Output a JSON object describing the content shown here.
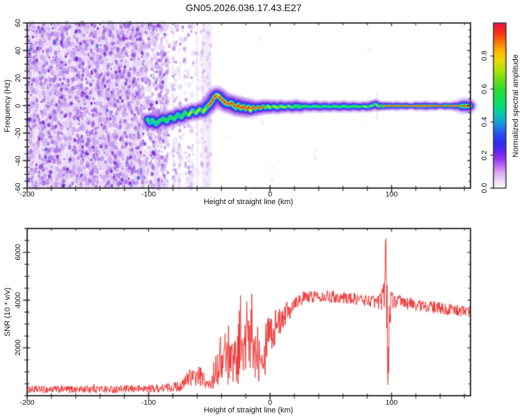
{
  "title": "GN05.2026.036.17.43.E27",
  "colors": {
    "frame": "#333333",
    "background": "#ffffff",
    "snr_line": "#ee3333",
    "noise_bg": "#f2e8fb"
  },
  "chart_data": [
    {
      "type": "heatmap",
      "name": "doppler-spectrogram",
      "xlabel": "Height of straight line (km)",
      "ylabel": "Frequency (Hz)",
      "xlim": [
        -200,
        165
      ],
      "ylim": [
        -60,
        60
      ],
      "x_ticks": {
        "values": [
          -200,
          -100,
          0,
          100
        ],
        "labels": [
          "-200",
          "-100",
          "0",
          "100"
        ],
        "minor_step": 20
      },
      "y_ticks": {
        "values": [
          60,
          40,
          20,
          0,
          -20,
          -40,
          -60
        ],
        "labels": [
          "60",
          "40",
          "20",
          "0",
          "-20",
          "-40",
          "-60"
        ],
        "minor_step": 5
      },
      "colorbar": {
        "label": "Normalized spectral amplitude",
        "range": [
          0,
          1
        ],
        "ticks": {
          "values": [
            0,
            0.2,
            0.4,
            0.6,
            0.8
          ],
          "labels": [
            "0.0",
            "0.2",
            "0.4",
            "0.6",
            "0.8"
          ]
        },
        "stops": [
          [
            0,
            "#fdf8fd"
          ],
          [
            0.04,
            "#f2dcf6"
          ],
          [
            0.09,
            "#dcabf0"
          ],
          [
            0.14,
            "#b864f1"
          ],
          [
            0.18,
            "#9132f1"
          ],
          [
            0.22,
            "#6326f3"
          ],
          [
            0.27,
            "#2f2cf1"
          ],
          [
            0.33,
            "#2453ee"
          ],
          [
            0.38,
            "#1b8ce2"
          ],
          [
            0.42,
            "#0db6c6"
          ],
          [
            0.46,
            "#07cfa0"
          ],
          [
            0.5,
            "#05df72"
          ],
          [
            0.55,
            "#17e14b"
          ],
          [
            0.6,
            "#30dd30"
          ],
          [
            0.66,
            "#72e013"
          ],
          [
            0.72,
            "#b6e309"
          ],
          [
            0.77,
            "#e6dc05"
          ],
          [
            0.82,
            "#fdbb03"
          ],
          [
            0.87,
            "#fd8a02"
          ],
          [
            0.91,
            "#fb5309"
          ],
          [
            0.95,
            "#f62a19"
          ],
          [
            1,
            "#ea1247"
          ]
        ]
      },
      "noise": {
        "seed": 77,
        "dense": {
          "x0": -200,
          "x1": -104,
          "blobs": [
            [
              "pale",
              1500
            ],
            [
              "mid",
              950
            ],
            [
              "dark",
              480
            ],
            [
              "deep",
              150
            ],
            [
              "blue",
              12
            ]
          ]
        },
        "medium": {
          "x0": -104,
          "x1": -84,
          "blobs": [
            [
              "pale",
              300
            ],
            [
              "mid",
              170
            ],
            [
              "dark",
              70
            ],
            [
              "deep",
              18
            ],
            [
              "blue",
              2
            ]
          ]
        },
        "sparse": {
          "x0": -84,
          "x1": -49,
          "columns": 30,
          "dots_min": 4,
          "dots_max": 16,
          "loose": 60
        },
        "stray": {
          "x0": -49,
          "x1": 100,
          "count": 12
        },
        "palette": {
          "pale": "#e3cdf4",
          "mid": "#bd8fec",
          "dark": "#9251e2",
          "deep": "#6d17cf",
          "blue": "#3b57e8"
        },
        "bands": [
          {
            "h": -60,
            "w": 3,
            "f0": -60,
            "f1": 60
          },
          {
            "h": -55,
            "w": 4,
            "f0": -60,
            "f1": 60
          },
          {
            "h": -52,
            "w": 5,
            "f0": -60,
            "f1": 60
          },
          {
            "h": -49.5,
            "w": 4,
            "f0": -60,
            "f1": 60
          },
          {
            "h": 88,
            "w": 3,
            "f0": -10,
            "f1": 10
          }
        ]
      },
      "trace_format": [
        "height_km",
        "frequency_hz",
        "amplitude"
      ],
      "trace": [
        [
          -101,
          -10,
          0.5
        ],
        [
          -99,
          -12.5,
          0.5
        ],
        [
          -97,
          -10.5,
          0.55
        ],
        [
          -94,
          -13.5,
          0.5
        ],
        [
          -91,
          -11,
          0.55
        ],
        [
          -88,
          -9.5,
          0.6
        ],
        [
          -85,
          -11.5,
          0.58
        ],
        [
          -82,
          -8,
          0.62
        ],
        [
          -79,
          -10,
          0.6
        ],
        [
          -76,
          -6.5,
          0.62
        ],
        [
          -73,
          -8.5,
          0.65
        ],
        [
          -70,
          -5,
          0.72
        ],
        [
          -67,
          -7,
          0.7
        ],
        [
          -64,
          -3.5,
          0.75
        ],
        [
          -61,
          -5.5,
          0.72
        ],
        [
          -58,
          -2.5,
          0.8
        ],
        [
          -55,
          -4.5,
          0.78
        ],
        [
          -52,
          -1,
          0.85
        ],
        [
          -50,
          0.5,
          0.88
        ],
        [
          -48,
          3,
          0.9
        ],
        [
          -46,
          6,
          0.92
        ],
        [
          -44,
          7.5,
          0.9
        ],
        [
          -42,
          6.5,
          0.95
        ],
        [
          -40,
          4.5,
          0.9
        ],
        [
          -38,
          3,
          0.93
        ],
        [
          -36,
          1.5,
          0.9
        ],
        [
          -34,
          1,
          0.95
        ],
        [
          -32,
          2,
          0.88
        ],
        [
          -30,
          0,
          0.95
        ],
        [
          -28,
          -1.5,
          0.9
        ],
        [
          -26,
          0.5,
          0.93
        ],
        [
          -24,
          -2,
          0.95
        ],
        [
          -22,
          -0.5,
          0.88
        ],
        [
          -20,
          -2.5,
          0.92
        ],
        [
          -18,
          -1,
          0.95
        ],
        [
          -16,
          -3,
          0.9
        ],
        [
          -14,
          -1,
          0.94
        ],
        [
          -12,
          -2.5,
          0.88
        ],
        [
          -10,
          -1,
          0.9
        ],
        [
          -8,
          -2,
          0.86
        ],
        [
          -6,
          -0.5,
          0.84
        ],
        [
          -4,
          -1.5,
          0.8
        ],
        [
          -2,
          -0.5,
          0.78
        ],
        [
          0,
          -1.5,
          0.75
        ],
        [
          3,
          -0.5,
          0.72
        ],
        [
          6,
          -1.5,
          0.74
        ],
        [
          9,
          -0.5,
          0.7
        ],
        [
          12,
          -1.2,
          0.72
        ],
        [
          15,
          -0.4,
          0.7
        ],
        [
          18,
          -1.2,
          0.71
        ],
        [
          21,
          -0.4,
          0.69
        ],
        [
          25,
          -1,
          0.7
        ],
        [
          29,
          -0.4,
          0.68
        ],
        [
          33,
          -1,
          0.7
        ],
        [
          37,
          -0.4,
          0.69
        ],
        [
          41,
          -1,
          0.7
        ],
        [
          45,
          -0.5,
          0.68
        ],
        [
          49,
          -1,
          0.7
        ],
        [
          53,
          -0.5,
          0.69
        ],
        [
          57,
          -1,
          0.7
        ],
        [
          61,
          -0.4,
          0.71
        ],
        [
          65,
          -1,
          0.69
        ],
        [
          69,
          -0.5,
          0.7
        ],
        [
          73,
          -1,
          0.7
        ],
        [
          77,
          -0.5,
          0.71
        ],
        [
          80,
          -0.9,
          0.72
        ],
        [
          83,
          -0.4,
          0.88
        ],
        [
          85,
          0.3,
          0.75
        ],
        [
          87,
          1,
          0.72
        ],
        [
          89,
          -0.6,
          0.78
        ],
        [
          91,
          -0.2,
          0.85
        ],
        [
          93,
          -0.4,
          0.9
        ],
        [
          95,
          -0.2,
          0.95
        ],
        [
          98,
          -0.3,
          0.97
        ],
        [
          104,
          -0.3,
          0.97
        ],
        [
          112,
          -0.3,
          0.96
        ],
        [
          120,
          -0.3,
          0.97
        ],
        [
          128,
          -0.3,
          0.97
        ],
        [
          136,
          -0.3,
          0.97
        ],
        [
          144,
          -0.3,
          0.97
        ],
        [
          152,
          -0.3,
          0.97
        ],
        [
          158,
          -0.3,
          0.97
        ],
        [
          162,
          -0.3,
          0.97
        ],
        [
          165,
          -0.3,
          0.97
        ]
      ]
    },
    {
      "type": "line",
      "name": "snr-profile",
      "xlabel": "Height of straight line (km)",
      "ylabel": "SNR (10 * v/v)",
      "xlim": [
        -200,
        165
      ],
      "ylim": [
        0,
        7000
      ],
      "x_ticks": {
        "values": [
          -200,
          -100,
          0,
          100
        ],
        "labels": [
          "-200",
          "-100",
          "0",
          "100"
        ],
        "minor_step": 20
      },
      "y_ticks": {
        "values": [
          2000,
          4000,
          6000
        ],
        "labels": [
          "2000",
          "4000",
          "6000"
        ],
        "minor_step": 500
      },
      "seed": 1234,
      "anchors_format": [
        "height_km",
        "snr_mean",
        "snr_halfspread"
      ],
      "anchors": [
        [
          -200,
          260,
          160
        ],
        [
          -185,
          260,
          155
        ],
        [
          -170,
          265,
          155
        ],
        [
          -155,
          262,
          155
        ],
        [
          -145,
          300,
          190
        ],
        [
          -140,
          272,
          160
        ],
        [
          -125,
          270,
          160
        ],
        [
          -110,
          285,
          165
        ],
        [
          -100,
          295,
          170
        ],
        [
          -92,
          310,
          180
        ],
        [
          -86,
          330,
          190
        ],
        [
          -80,
          360,
          205
        ],
        [
          -75,
          395,
          225
        ],
        [
          -71,
          470,
          260
        ],
        [
          -68,
          700,
          420
        ],
        [
          -66,
          950,
          520
        ],
        [
          -64,
          720,
          360
        ],
        [
          -61,
          770,
          390
        ],
        [
          -58,
          830,
          410
        ],
        [
          -55,
          700,
          350
        ],
        [
          -52,
          480,
          240
        ],
        [
          -50,
          430,
          220
        ],
        [
          -48,
          560,
          320
        ],
        [
          -46,
          900,
          600
        ],
        [
          -45,
          1350,
          800
        ],
        [
          -43,
          1080,
          680
        ],
        [
          -41,
          1650,
          880
        ],
        [
          -39,
          1280,
          780
        ],
        [
          -37,
          1950,
          980
        ],
        [
          -35,
          1500,
          1350
        ],
        [
          -33,
          2150,
          1280
        ],
        [
          -31,
          1400,
          900
        ],
        [
          -29,
          1850,
          1080
        ],
        [
          -27,
          1500,
          1180
        ],
        [
          -25,
          2600,
          1750
        ],
        [
          -24,
          2950,
          1500
        ],
        [
          -23,
          1600,
          1000
        ],
        [
          -21,
          1750,
          1180
        ],
        [
          -19,
          2850,
          1580
        ],
        [
          -17,
          1700,
          1080
        ],
        [
          -15,
          2850,
          1580
        ],
        [
          -13,
          1600,
          1000
        ],
        [
          -11,
          2150,
          1180
        ],
        [
          -9,
          1800,
          1280
        ],
        [
          -7,
          2350,
          1080
        ],
        [
          -5,
          1400,
          800
        ],
        [
          -4,
          2050,
          1180
        ],
        [
          -2,
          2750,
          880
        ],
        [
          0,
          3050,
          780
        ],
        [
          2,
          2400,
          700
        ],
        [
          4,
          2850,
          780
        ],
        [
          6,
          3250,
          600
        ],
        [
          8,
          3000,
          680
        ],
        [
          10,
          3450,
          500
        ],
        [
          12,
          3300,
          580
        ],
        [
          14,
          3650,
          420
        ],
        [
          16,
          3580,
          440
        ],
        [
          18,
          3820,
          360
        ],
        [
          20,
          3930,
          330
        ],
        [
          23,
          4000,
          300
        ],
        [
          26,
          4070,
          285
        ],
        [
          30,
          4120,
          270
        ],
        [
          35,
          4165,
          260
        ],
        [
          40,
          4195,
          260
        ],
        [
          45,
          4185,
          255
        ],
        [
          50,
          4160,
          255
        ],
        [
          55,
          4135,
          250
        ],
        [
          60,
          4110,
          250
        ],
        [
          65,
          4080,
          250
        ],
        [
          70,
          4050,
          250
        ],
        [
          75,
          4020,
          250
        ],
        [
          80,
          3990,
          255
        ],
        [
          84,
          3960,
          260
        ],
        [
          88,
          3935,
          285
        ],
        [
          91,
          3975,
          350
        ],
        [
          93,
          4090,
          520
        ],
        [
          94.5,
          5300,
          1500
        ],
        [
          95.4,
          6800,
          180
        ],
        [
          96.2,
          3400,
          2400
        ],
        [
          97,
          900,
          620
        ],
        [
          97.8,
          2600,
          1750
        ],
        [
          98.6,
          3600,
          900
        ],
        [
          100,
          3950,
          450
        ],
        [
          102,
          3980,
          330
        ],
        [
          105,
          3945,
          300
        ],
        [
          110,
          3900,
          285
        ],
        [
          115,
          3855,
          270
        ],
        [
          120,
          3810,
          265
        ],
        [
          125,
          3765,
          260
        ],
        [
          130,
          3730,
          255
        ],
        [
          135,
          3695,
          255
        ],
        [
          140,
          3660,
          250
        ],
        [
          145,
          3625,
          250
        ],
        [
          150,
          3590,
          245
        ],
        [
          155,
          3560,
          245
        ],
        [
          160,
          3530,
          240
        ],
        [
          165,
          3505,
          240
        ]
      ]
    }
  ]
}
